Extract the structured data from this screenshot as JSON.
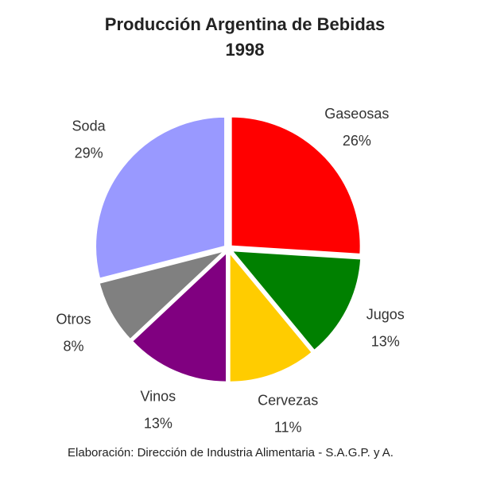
{
  "chart_data": {
    "type": "pie",
    "title": "Producción Argentina de Bebidas",
    "subtitle": "1998",
    "categories": [
      "Gaseosas",
      "Jugos",
      "Cervezas",
      "Vinos",
      "Otros",
      "Soda"
    ],
    "values": [
      26,
      13,
      11,
      13,
      8,
      29
    ],
    "value_labels": [
      "26%",
      "13%",
      "11%",
      "13%",
      "8%",
      "29%"
    ],
    "colors": [
      "#ff0000",
      "#008000",
      "#ffcc00",
      "#800080",
      "#808080",
      "#9999ff"
    ],
    "footnote": "Elaboración: Dirección de Industria Alimentaria - S.A.G.P. y A."
  }
}
